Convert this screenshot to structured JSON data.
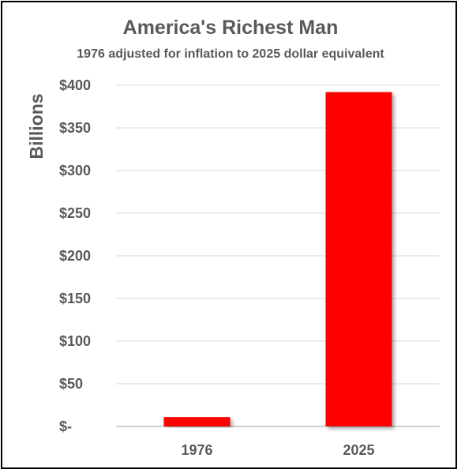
{
  "chart_data": {
    "type": "bar",
    "title": "America's Richest Man",
    "subtitle": "1976 adjusted for inflation to 2025 dollar equivalent",
    "ylabel": "Billions",
    "xlabel": "",
    "categories": [
      "1976",
      "2025"
    ],
    "values": [
      11,
      392
    ],
    "ylim": [
      0,
      400
    ],
    "yticks": [
      0,
      50,
      100,
      150,
      200,
      250,
      300,
      350,
      400
    ],
    "ytick_labels": [
      "$-",
      "$50",
      "$100",
      "$150",
      "$200",
      "$250",
      "$300",
      "$350",
      "$400"
    ],
    "grid": true,
    "legend": "none",
    "bar_color": "#ff0000",
    "grid_color": "#d9d9d9",
    "text_color": "#595959"
  }
}
